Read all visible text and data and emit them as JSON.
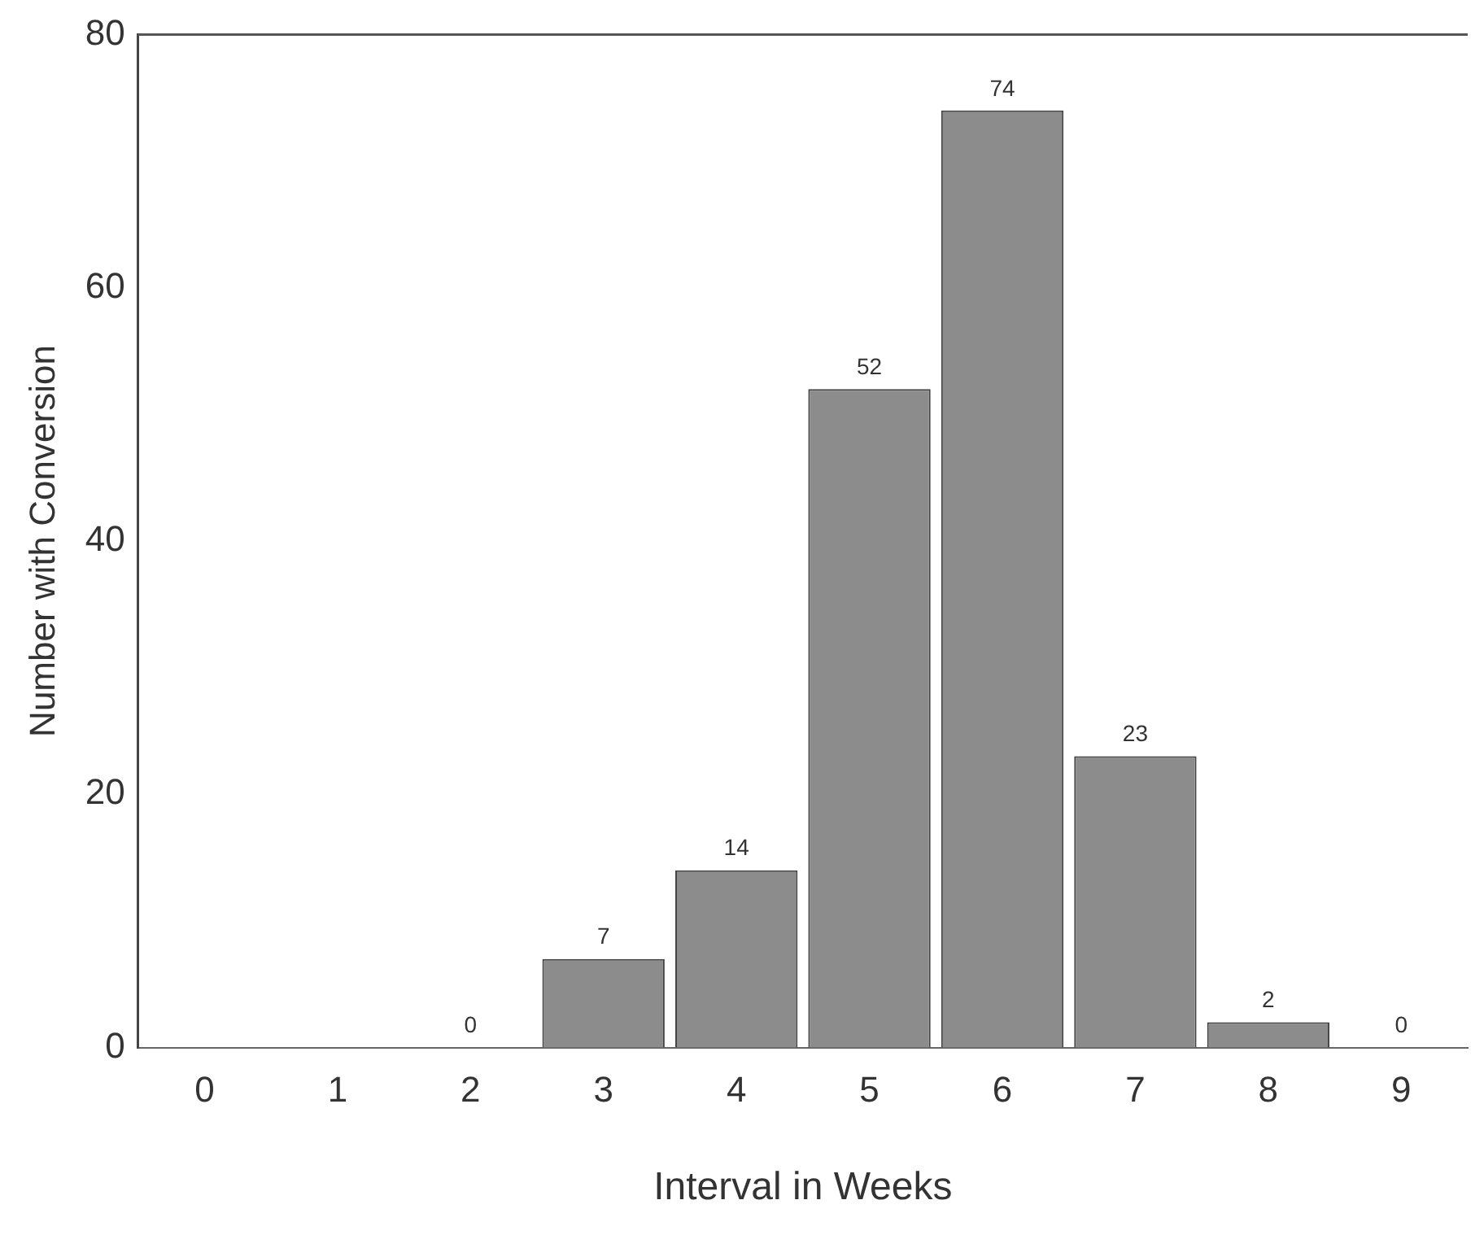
{
  "chart_data": {
    "type": "bar",
    "xlabel": "Interval in Weeks",
    "ylabel": "Number with Conversion",
    "categories": [
      "0",
      "1",
      "2",
      "3",
      "4",
      "5",
      "6",
      "7",
      "8",
      "9"
    ],
    "values": [
      0,
      0,
      0,
      7,
      14,
      52,
      74,
      23,
      2,
      0
    ],
    "value_labels": [
      null,
      null,
      "0",
      "7",
      "14",
      "52",
      "74",
      "23",
      "2",
      "0"
    ],
    "color": "#8c8c8c",
    "ylim": [
      0,
      80
    ],
    "yticks": [
      0,
      20,
      40,
      60,
      80
    ],
    "grid": false,
    "legend": false
  }
}
